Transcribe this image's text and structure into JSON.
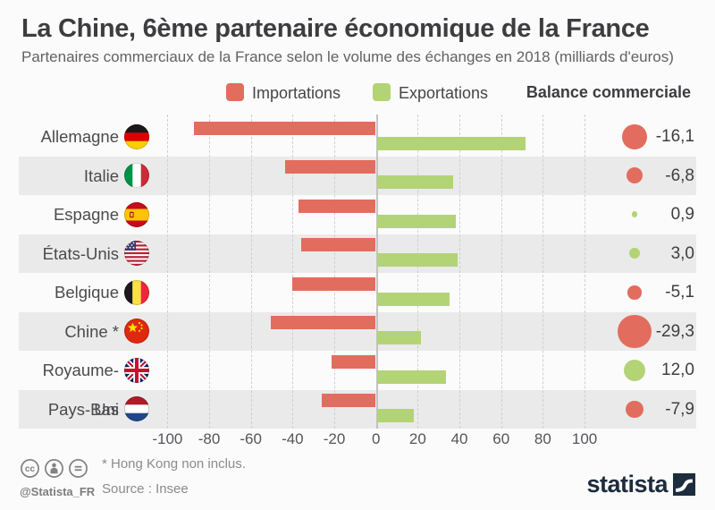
{
  "chart_data": {
    "type": "bar",
    "orientation": "horizontal-diverging",
    "title": "La Chine, 6ème partenaire économique de la France",
    "subtitle": "Partenaires commerciaux de la France selon le volume des échanges en 2018 (milliards d'euros)",
    "unit": "milliards d'euros",
    "categories": [
      "Allemagne",
      "Italie",
      "Espagne",
      "États-Unis",
      "Belgique",
      "Chine *",
      "Royaume-Uni",
      "Pays-Bas"
    ],
    "flags": [
      "flag-germany",
      "flag-italy",
      "flag-spain",
      "flag-usa",
      "flag-belgium",
      "flag-china",
      "flag-uk",
      "flag-netherlands"
    ],
    "series": [
      {
        "name": "Importations",
        "color": "#e26d5e",
        "direction": "left",
        "values": [
          87.0,
          43.3,
          36.8,
          35.3,
          39.9,
          50.2,
          20.8,
          25.6
        ]
      },
      {
        "name": "Exportations",
        "color": "#b3d377",
        "direction": "right",
        "values": [
          71.0,
          36.5,
          37.7,
          38.3,
          34.8,
          20.9,
          32.8,
          17.7
        ]
      }
    ],
    "balance": {
      "name": "Balance commerciale",
      "values": [
        -16.1,
        -6.8,
        0.9,
        3.0,
        -5.1,
        -29.3,
        12.0,
        -7.9
      ],
      "labels": [
        "-16,1",
        "-6,8",
        "0,9",
        "3,0",
        "-5,1",
        "-29,3",
        "12,0",
        "-7,9"
      ],
      "negative_color": "#e26d5e",
      "positive_color": "#b3d377"
    },
    "x_ticks": [
      "-100",
      "-80",
      "-60",
      "-40",
      "-20",
      "0",
      "20",
      "40",
      "60",
      "80",
      "100"
    ],
    "xlim": [
      -100,
      100
    ],
    "grid": "dashed-vertical",
    "legend_position": "top",
    "row_stripe_color": "#eaeaea"
  },
  "footer": {
    "note": "* Hong Kong non inclus.",
    "source": "Source : Insee",
    "handle": "@Statista_FR",
    "brand": "statista",
    "license_icons": [
      "cc-icon",
      "attribution-icon",
      "equal-icon"
    ]
  }
}
